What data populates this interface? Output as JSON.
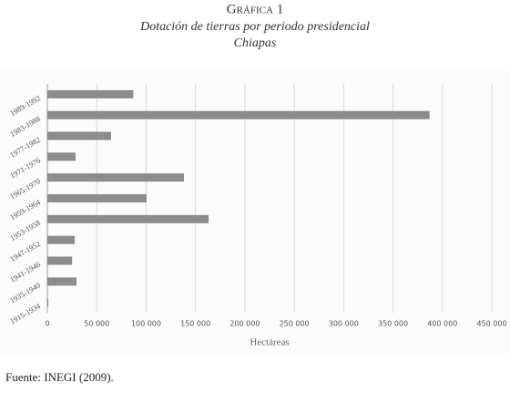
{
  "chart_data": {
    "type": "hbar",
    "title": "Gráfica 1",
    "subtitle": "Dotación de tierras por periodo presidencial",
    "region": "Chiapas",
    "x_label": "Hectáreas",
    "source": "Fuente: INEGI (2009).",
    "categories": [
      "1989-1992",
      "1983-1988",
      "1977-1982",
      "1971-1976",
      "1965-1970",
      "1959-1964",
      "1953-1958",
      "1947-1952",
      "1941-1946",
      "1935-1940",
      "1915-1934"
    ],
    "values": [
      87000,
      387000,
      64500,
      28600,
      138300,
      100500,
      163200,
      27700,
      25000,
      29500,
      1000
    ],
    "color": "#8c8c8c",
    "xlim": [
      0,
      450000
    ],
    "xticks": [
      0,
      {
        "value": 50000,
        "label": "50 000"
      },
      {
        "value": 100000,
        "label": "100 000"
      },
      {
        "value": 150000,
        "label": "150 000"
      },
      {
        "value": 200000,
        "label": "200 000"
      },
      {
        "value": 250000,
        "label": "250 000"
      },
      {
        "value": 300000,
        "label": "300 000"
      },
      {
        "value": 350000,
        "label": "350 000"
      },
      {
        "value": 400000,
        "label": "400 000"
      },
      {
        "value": 450000,
        "label": "450 000"
      }
    ],
    "grid": true
  }
}
